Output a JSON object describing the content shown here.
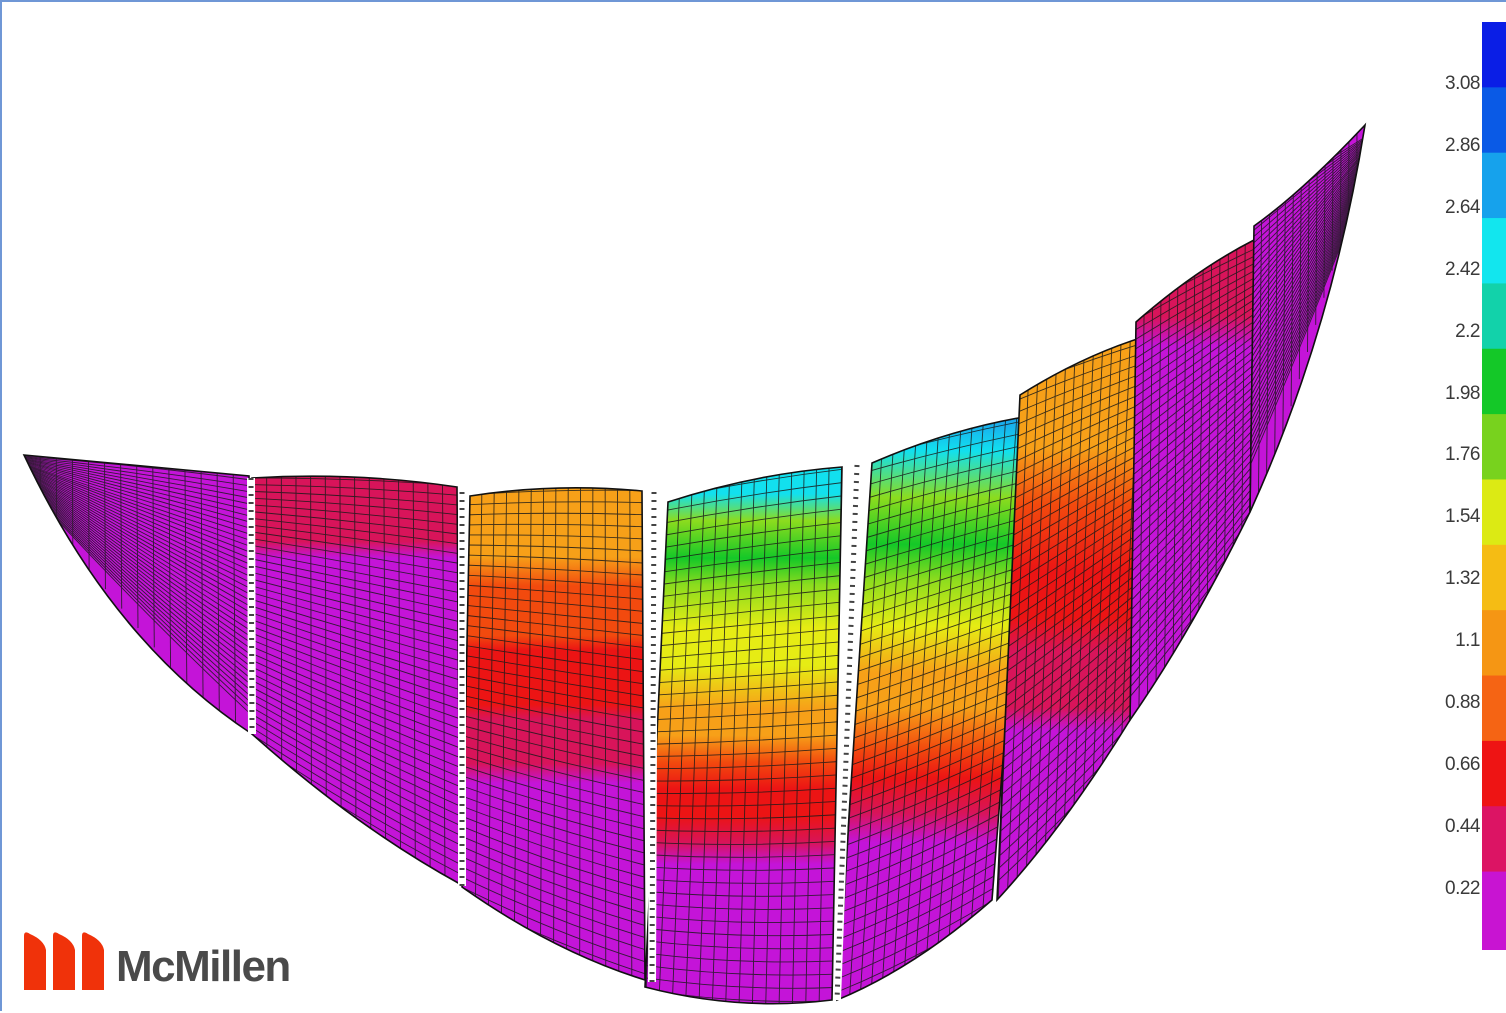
{
  "legend": {
    "tick_labels": [
      "3.08",
      "2.86",
      "2.64",
      "2.42",
      "2.2",
      "1.98",
      "1.76",
      "1.54",
      "1.32",
      "1.1",
      "0.88",
      "0.66",
      "0.44",
      "0.22"
    ],
    "colors": [
      "#0a1ee6",
      "#0a5ae6",
      "#16a2ec",
      "#12e6ee",
      "#12d2aa",
      "#14c828",
      "#78d21e",
      "#dcea14",
      "#f5bc14",
      "#f59614",
      "#f56414",
      "#ee1414",
      "#dc1464",
      "#c814d2"
    ]
  },
  "colors": {
    "magenta": "#c414d8",
    "crimson": "#d8145a",
    "red": "#ec1414",
    "orange_red": "#f24a0e",
    "orange": "#f7a018",
    "yellow": "#e6ec14",
    "lime": "#8cdc1e",
    "green": "#14c828",
    "cyan": "#12e0ee",
    "sky": "#1aa0ee",
    "mesh": "#1a1a1a",
    "logo_red": "#f0320a"
  },
  "logo": {
    "text": "McMillen"
  }
}
